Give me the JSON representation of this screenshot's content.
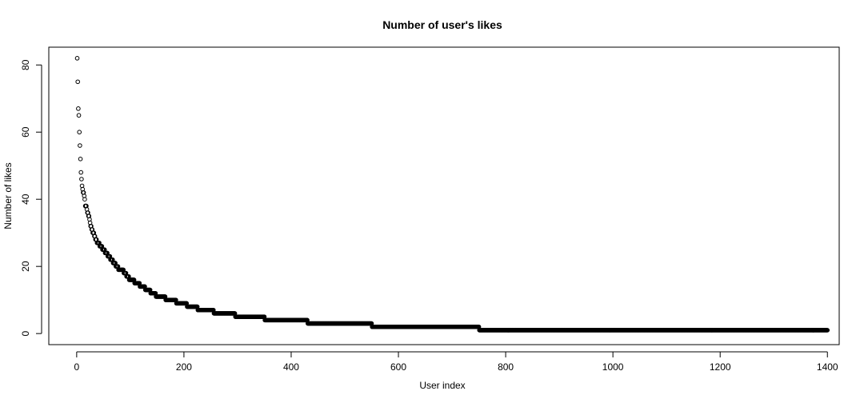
{
  "chart_data": {
    "type": "scatter",
    "title": "Number of user's likes",
    "xlabel": "User index",
    "ylabel": "Number of likes",
    "xlim": [
      -52,
      1422
    ],
    "ylim": [
      -3.3,
      85.3
    ],
    "xticks": [
      0,
      200,
      400,
      600,
      800,
      1000,
      1200,
      1400
    ],
    "yticks": [
      0,
      20,
      40,
      60,
      80
    ],
    "x_tick_labels": [
      "0",
      "200",
      "400",
      "600",
      "800",
      "1000",
      "1200",
      "1400"
    ],
    "y_tick_labels": [
      "0",
      "20",
      "40",
      "60",
      "80"
    ],
    "grid": false,
    "legend": "none",
    "marker": "open-circle",
    "marker_color": "#000000",
    "n_points": 1400,
    "x": [
      1,
      3,
      4,
      5,
      7,
      8,
      10,
      12,
      14,
      16,
      18,
      20,
      22,
      24,
      26,
      28,
      31,
      35,
      40,
      45,
      50,
      55,
      60,
      65,
      70,
      75,
      80,
      85,
      90,
      95,
      100,
      105,
      110,
      115,
      120,
      125,
      130,
      135,
      140,
      145,
      150,
      160,
      170,
      180,
      190,
      200,
      210,
      220,
      230,
      240,
      250,
      260,
      270,
      280,
      290,
      300,
      320,
      340,
      360,
      380,
      400,
      420,
      440,
      460,
      480,
      500,
      520,
      540,
      560,
      580,
      600,
      620,
      640,
      660,
      680,
      700,
      720,
      740,
      760,
      780,
      800,
      850,
      900,
      950,
      1000,
      1050,
      1100,
      1150,
      1200,
      1250,
      1300,
      1350,
      1400
    ],
    "y": [
      82,
      67,
      65,
      60,
      52,
      48,
      44,
      42,
      41,
      38,
      38,
      36,
      35,
      34,
      32,
      31,
      30,
      28,
      27,
      26,
      25,
      24,
      23,
      22,
      21,
      20,
      19,
      19,
      18,
      17,
      16,
      16,
      15,
      15,
      14,
      14,
      13,
      13,
      12,
      12,
      11,
      11,
      10,
      10,
      9,
      9,
      8,
      8,
      7,
      7,
      7,
      6,
      6,
      6,
      6,
      5,
      5,
      5,
      4,
      4,
      4,
      4,
      3,
      3,
      3,
      3,
      3,
      3,
      2,
      2,
      2,
      2,
      2,
      2,
      2,
      2,
      2,
      2,
      1,
      1,
      1,
      1,
      1,
      1,
      1,
      1,
      1,
      1,
      1,
      1,
      1,
      1,
      1
    ]
  }
}
